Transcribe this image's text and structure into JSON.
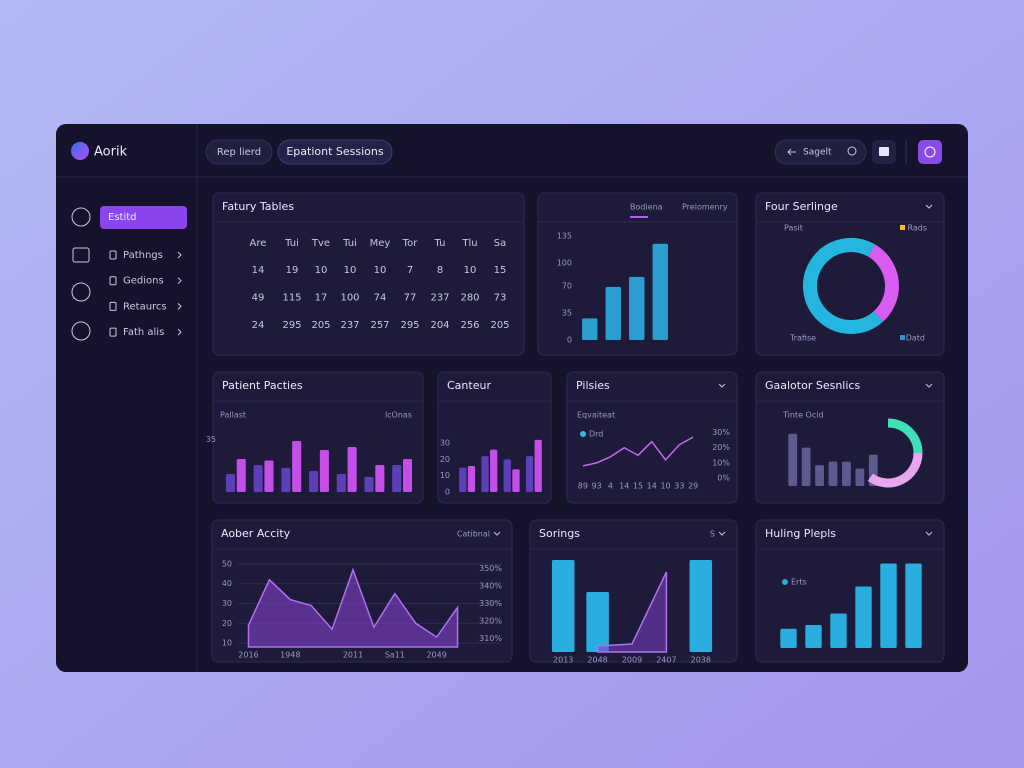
{
  "app": {
    "name": "Aorik"
  },
  "tabs": [
    "Rep lierd",
    "Epationt Sessions"
  ],
  "search": "Sagelt",
  "sidebar": {
    "button": "Estitd",
    "items": [
      "Pathngs",
      "Gedions",
      "Retaurcs",
      "Fath alis"
    ]
  },
  "calendar": {
    "title": "Fatury Tables",
    "header": [
      "Are",
      "Tui",
      "Tve",
      "Tui",
      "Mey",
      "Tor",
      "Tu",
      "Tlu",
      "Sa"
    ],
    "rows": [
      [
        14,
        19,
        10,
        10,
        10,
        7,
        8,
        10,
        15
      ],
      [
        49,
        115,
        17,
        100,
        74,
        77,
        237,
        280,
        73
      ],
      [
        24,
        295,
        205,
        237,
        257,
        295,
        204,
        256,
        205
      ]
    ]
  },
  "chart_data": [
    {
      "type": "bar",
      "tabs": [
        "Bodiena",
        "Prelomenry"
      ],
      "categories": [
        null,
        null,
        null,
        null
      ],
      "values": [
        28,
        69,
        82,
        125
      ],
      "color": "#2a9fcf",
      "ylim": [
        0,
        135
      ],
      "yticks": [
        0,
        35,
        70,
        100,
        135
      ]
    },
    {
      "type": "pie",
      "title": "Four Serlinge",
      "categories": [
        "Pasit",
        "Rads"
      ],
      "values": [
        70,
        30
      ],
      "colors": [
        "#25b6e0",
        "#d95cf0"
      ],
      "annotations": [
        "Trafise",
        "Datd"
      ]
    },
    {
      "type": "bar",
      "title": "Patient Pacties",
      "annotations": [
        "Pallast",
        "lcOnas"
      ],
      "categories": [
        null,
        null,
        null,
        null,
        null,
        null,
        null
      ],
      "ylim": [
        0,
        40
      ],
      "yticks": [
        35
      ],
      "series": [
        {
          "color": "#5d3fb8",
          "values": [
            12,
            18,
            16,
            14,
            12,
            10,
            18
          ]
        },
        {
          "color": "#c64ee8",
          "values": [
            22,
            21,
            34,
            28,
            30,
            18,
            22
          ]
        }
      ]
    },
    {
      "type": "bar",
      "title": "Canteur",
      "categories": [
        null,
        null,
        null,
        null
      ],
      "ylim": [
        0,
        35
      ],
      "yticks": [
        0,
        10,
        20,
        30
      ],
      "series": [
        {
          "color": "#5d3fb8",
          "values": [
            15,
            22,
            20,
            22
          ]
        },
        {
          "color": "#c64ee8",
          "values": [
            16,
            26,
            14,
            32
          ]
        }
      ]
    },
    {
      "type": "line",
      "title": "Pilsies",
      "annotations": [
        "Eqvaiteat"
      ],
      "categories": [
        "89",
        "93",
        "4",
        "14",
        "15",
        "14",
        "10",
        "33",
        "29"
      ],
      "ylim": [
        0,
        35
      ],
      "y2lim": [
        0,
        35
      ],
      "y2ticks": [
        {
          "value": 0,
          "label": "0%"
        },
        {
          "value": 10,
          "label": "10%"
        },
        {
          "value": 20,
          "label": "20%"
        },
        {
          "value": 30,
          "label": "30%"
        }
      ],
      "series": [
        {
          "name": "Drd",
          "color": "#c865ee",
          "values": [
            8,
            10,
            14,
            20,
            15,
            24,
            12,
            22,
            27
          ]
        }
      ]
    },
    {
      "type": "bar",
      "title": "Gaalotor Sesnlics",
      "annotations": [
        "Tinte Ocld"
      ],
      "categories": [
        null,
        null,
        null,
        null,
        null,
        null,
        null
      ],
      "values": [
        30,
        22,
        12,
        14,
        14,
        10,
        18
      ],
      "color": "#5f5a8e",
      "ylim": [
        0,
        35
      ],
      "ring": {
        "values": [
          25,
          35
        ],
        "colors": [
          "#3ee0b8",
          "#e8a6f0"
        ]
      }
    },
    {
      "type": "area",
      "title": "Aober Accity",
      "dropdown": "Catibnal",
      "categories": [
        "2016",
        null,
        "1948",
        null,
        null,
        "2011",
        null,
        "Sa11",
        null,
        "2049",
        null
      ],
      "ylim": [
        8,
        52
      ],
      "yticks": [
        10,
        20,
        30,
        40,
        50
      ],
      "grid": true,
      "y2lim": [
        305,
        355
      ],
      "y2ticks": [
        {
          "value": 310,
          "label": "310%"
        },
        {
          "value": 320,
          "label": "320%"
        },
        {
          "value": 330,
          "label": "330%"
        },
        {
          "value": 340,
          "label": "340%"
        },
        {
          "value": 350,
          "label": "350%"
        }
      ],
      "series": [
        {
          "color": "#8a45d8",
          "values": [
            19,
            42,
            32,
            29,
            17,
            47,
            18,
            35,
            20,
            13,
            28
          ]
        }
      ]
    },
    {
      "type": "bar",
      "title": "Sorings",
      "dropdown": "S",
      "categories": [
        "2013",
        "2048",
        "2009",
        "2407",
        "2038"
      ],
      "ylim": [
        0,
        50
      ],
      "series": [
        {
          "color": "#2aaee0",
          "values": [
            46,
            30,
            null,
            null,
            46
          ]
        },
        {
          "type": "area",
          "color": "#7a3fc8",
          "values": [
            null,
            3,
            4,
            40,
            null
          ]
        }
      ]
    },
    {
      "type": "bar",
      "title": "Huling Plepls",
      "categories": [
        null,
        null,
        null,
        null,
        null,
        null
      ],
      "ylim": [
        0,
        50
      ],
      "series": [
        {
          "name": "Erts",
          "color": "#2aaee0",
          "values": [
            10,
            12,
            18,
            32,
            44,
            44
          ]
        }
      ]
    }
  ]
}
